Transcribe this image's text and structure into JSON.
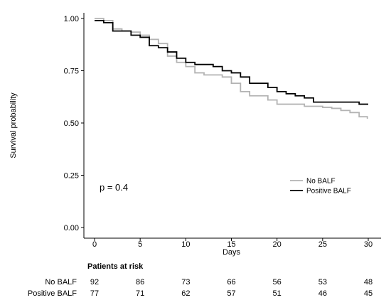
{
  "chart_data": {
    "type": "line",
    "xlabel": "Days",
    "ylabel": "Survival probability",
    "xlim": [
      -1,
      31
    ],
    "ylim": [
      -0.01,
      1.03
    ],
    "xticks": [
      0,
      5,
      10,
      15,
      20,
      25,
      30
    ],
    "yticks": [
      0.0,
      0.25,
      0.5,
      0.75,
      1.0
    ],
    "ytick_labels": [
      "0.00",
      "0.25",
      "0.50",
      "0.75",
      "1.00"
    ],
    "grid": false,
    "legend_position": "bottom-right",
    "annotation": "p = 0.4",
    "series": [
      {
        "name": "No BALF",
        "color": "#b3b3b3",
        "x": [
          0,
          1,
          2,
          3,
          4,
          5,
          6,
          7,
          8,
          9,
          10,
          11,
          12,
          13,
          14,
          15,
          16,
          17,
          18,
          19,
          20,
          21,
          22,
          23,
          24,
          25,
          26,
          27,
          28,
          29,
          29.9
        ],
        "y": [
          1.0,
          0.99,
          0.95,
          0.94,
          0.935,
          0.92,
          0.9,
          0.88,
          0.82,
          0.79,
          0.77,
          0.74,
          0.73,
          0.73,
          0.72,
          0.69,
          0.65,
          0.63,
          0.63,
          0.61,
          0.59,
          0.59,
          0.59,
          0.58,
          0.58,
          0.575,
          0.57,
          0.56,
          0.55,
          0.53,
          0.52
        ]
      },
      {
        "name": "Positive BALF",
        "color": "#000000",
        "x": [
          0,
          1,
          2,
          3,
          4,
          5,
          6,
          7,
          8,
          9,
          10,
          11,
          12,
          13,
          14,
          15,
          16,
          17,
          18,
          19,
          20,
          21,
          22,
          23,
          24,
          25,
          26,
          27,
          28,
          29,
          30
        ],
        "y": [
          0.99,
          0.98,
          0.94,
          0.94,
          0.92,
          0.91,
          0.87,
          0.86,
          0.84,
          0.81,
          0.79,
          0.78,
          0.78,
          0.77,
          0.75,
          0.74,
          0.72,
          0.69,
          0.69,
          0.67,
          0.65,
          0.64,
          0.63,
          0.62,
          0.6,
          0.6,
          0.6,
          0.6,
          0.6,
          0.59,
          0.59
        ]
      }
    ],
    "risk_table": {
      "title": "Patients at risk",
      "times": [
        0,
        5,
        10,
        15,
        20,
        25,
        30
      ],
      "rows": [
        {
          "label": "No BALF",
          "values": [
            92,
            86,
            73,
            66,
            56,
            53,
            48
          ]
        },
        {
          "label": "Positive BALF",
          "values": [
            77,
            71,
            62,
            57,
            51,
            46,
            45
          ]
        }
      ]
    }
  }
}
